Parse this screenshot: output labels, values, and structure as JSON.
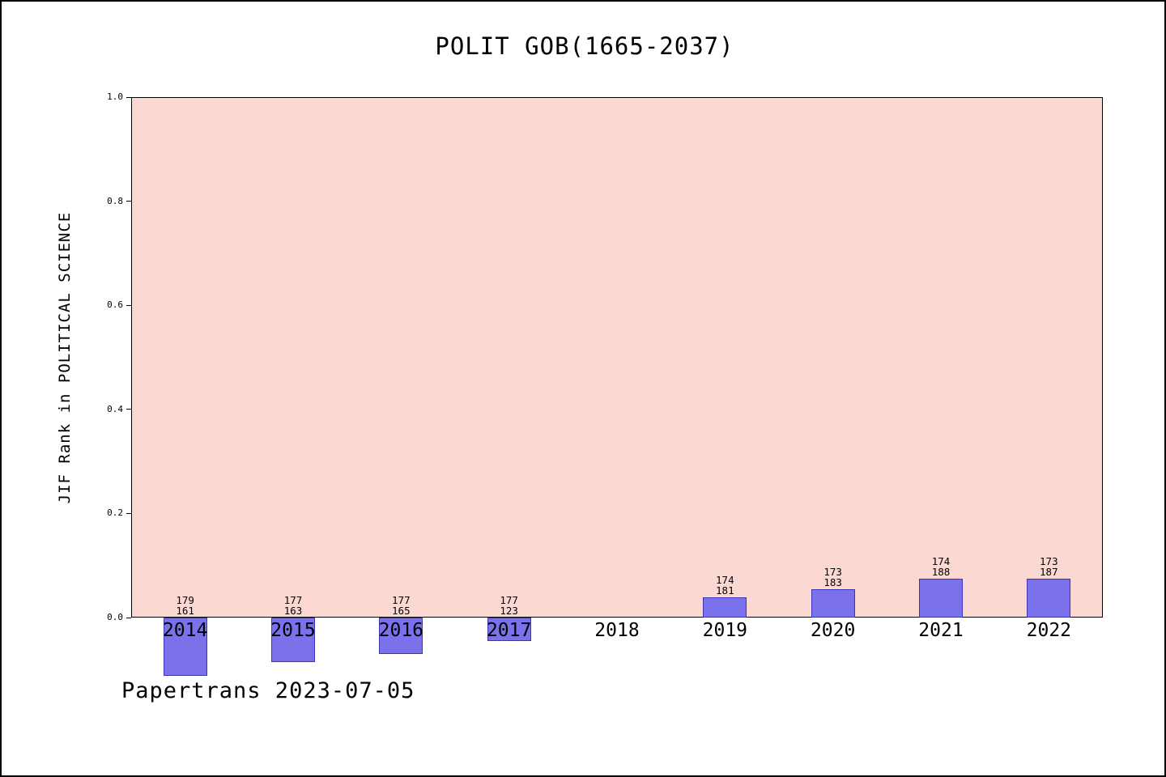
{
  "chart_data": {
    "type": "bar",
    "title": "POLIT GOB(1665-2037)",
    "xlabel": "",
    "ylabel": "JIF Rank in POLITICAL SCIENCE",
    "ylim": [
      0.0,
      1.0
    ],
    "ytick_labels": [
      "0.0",
      "0.2",
      "0.4",
      "0.6",
      "0.8",
      "1.0"
    ],
    "grid": false,
    "legend": "none",
    "plot_bg_color": "#fbd9d2",
    "bar_color": "#7b72eb",
    "bar_edge_color": "#3d35b5",
    "categories": [
      "2014",
      "2015",
      "2016",
      "2017",
      "2018",
      "2019",
      "2020",
      "2021",
      "2022"
    ],
    "bars": [
      {
        "year": "2014",
        "rank_label": "179",
        "total_label": "161",
        "value": -0.112
      },
      {
        "year": "2015",
        "rank_label": "177",
        "total_label": "163",
        "value": -0.086
      },
      {
        "year": "2016",
        "rank_label": "177",
        "total_label": "165",
        "value": -0.07
      },
      {
        "year": "2017",
        "rank_label": "177",
        "total_label": "123",
        "value": -0.045
      },
      {
        "year": "2018",
        "rank_label": null,
        "total_label": null,
        "value": null
      },
      {
        "year": "2019",
        "rank_label": "174",
        "total_label": "181",
        "value": 0.039
      },
      {
        "year": "2020",
        "rank_label": "173",
        "total_label": "183",
        "value": 0.055
      },
      {
        "year": "2021",
        "rank_label": "174",
        "total_label": "188",
        "value": 0.074
      },
      {
        "year": "2022",
        "rank_label": "173",
        "total_label": "187",
        "value": 0.075
      }
    ],
    "footer": "Papertrans 2023-07-05"
  }
}
